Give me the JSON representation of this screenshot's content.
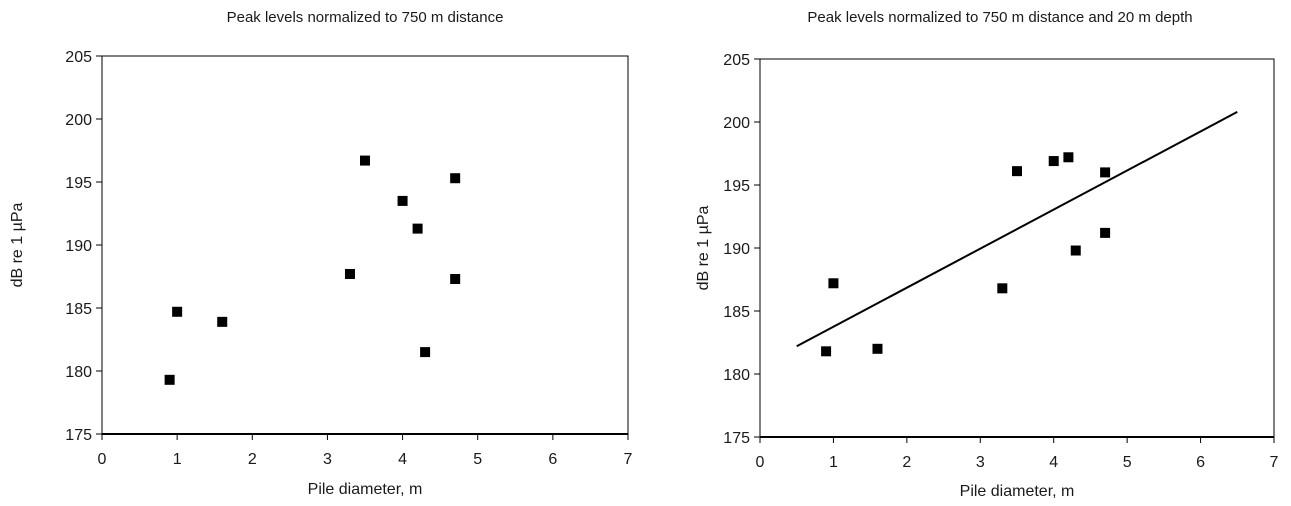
{
  "chart_data": [
    {
      "type": "scatter",
      "title": "Peak levels normalized to 750 m distance",
      "xlabel": "Pile diameter, m",
      "ylabel": "dB re 1 µPa",
      "xlim": [
        0,
        7
      ],
      "ylim": [
        175,
        205
      ],
      "xticks": [
        "0",
        "1",
        "2",
        "3",
        "4",
        "5",
        "6",
        "7"
      ],
      "yticks": [
        "175",
        "180",
        "185",
        "190",
        "195",
        "200",
        "205"
      ],
      "grid": false,
      "legend": "none",
      "marker": "square",
      "color": "#000000",
      "series": [
        {
          "points": [
            {
              "x": 0.9,
              "y": 179.3
            },
            {
              "x": 1.0,
              "y": 184.7
            },
            {
              "x": 1.6,
              "y": 183.9
            },
            {
              "x": 3.3,
              "y": 187.7
            },
            {
              "x": 3.5,
              "y": 196.7
            },
            {
              "x": 4.0,
              "y": 193.5
            },
            {
              "x": 4.2,
              "y": 191.3
            },
            {
              "x": 4.3,
              "y": 181.5
            },
            {
              "x": 4.7,
              "y": 195.3
            },
            {
              "x": 4.7,
              "y": 187.3
            }
          ]
        }
      ]
    },
    {
      "type": "scatter",
      "title": "Peak levels normalized to 750 m distance and 20 m depth",
      "xlabel": "Pile diameter, m",
      "ylabel": "dB re 1 µPa",
      "xlim": [
        0,
        7
      ],
      "ylim": [
        175,
        205
      ],
      "xticks": [
        "0",
        "1",
        "2",
        "3",
        "4",
        "5",
        "6",
        "7"
      ],
      "yticks": [
        "175",
        "180",
        "185",
        "190",
        "195",
        "200",
        "205"
      ],
      "grid": false,
      "legend": "none",
      "marker": "square",
      "color": "#000000",
      "series": [
        {
          "points": [
            {
              "x": 0.9,
              "y": 181.8
            },
            {
              "x": 1.0,
              "y": 187.2
            },
            {
              "x": 1.6,
              "y": 182.0
            },
            {
              "x": 3.3,
              "y": 186.8
            },
            {
              "x": 3.5,
              "y": 196.1
            },
            {
              "x": 4.0,
              "y": 196.9
            },
            {
              "x": 4.2,
              "y": 197.2
            },
            {
              "x": 4.3,
              "y": 189.8
            },
            {
              "x": 4.7,
              "y": 196.0
            },
            {
              "x": 4.7,
              "y": 191.2
            }
          ]
        }
      ],
      "trendline": {
        "x": [
          0.5,
          6.5
        ],
        "y": [
          182.2,
          200.8
        ]
      }
    }
  ]
}
